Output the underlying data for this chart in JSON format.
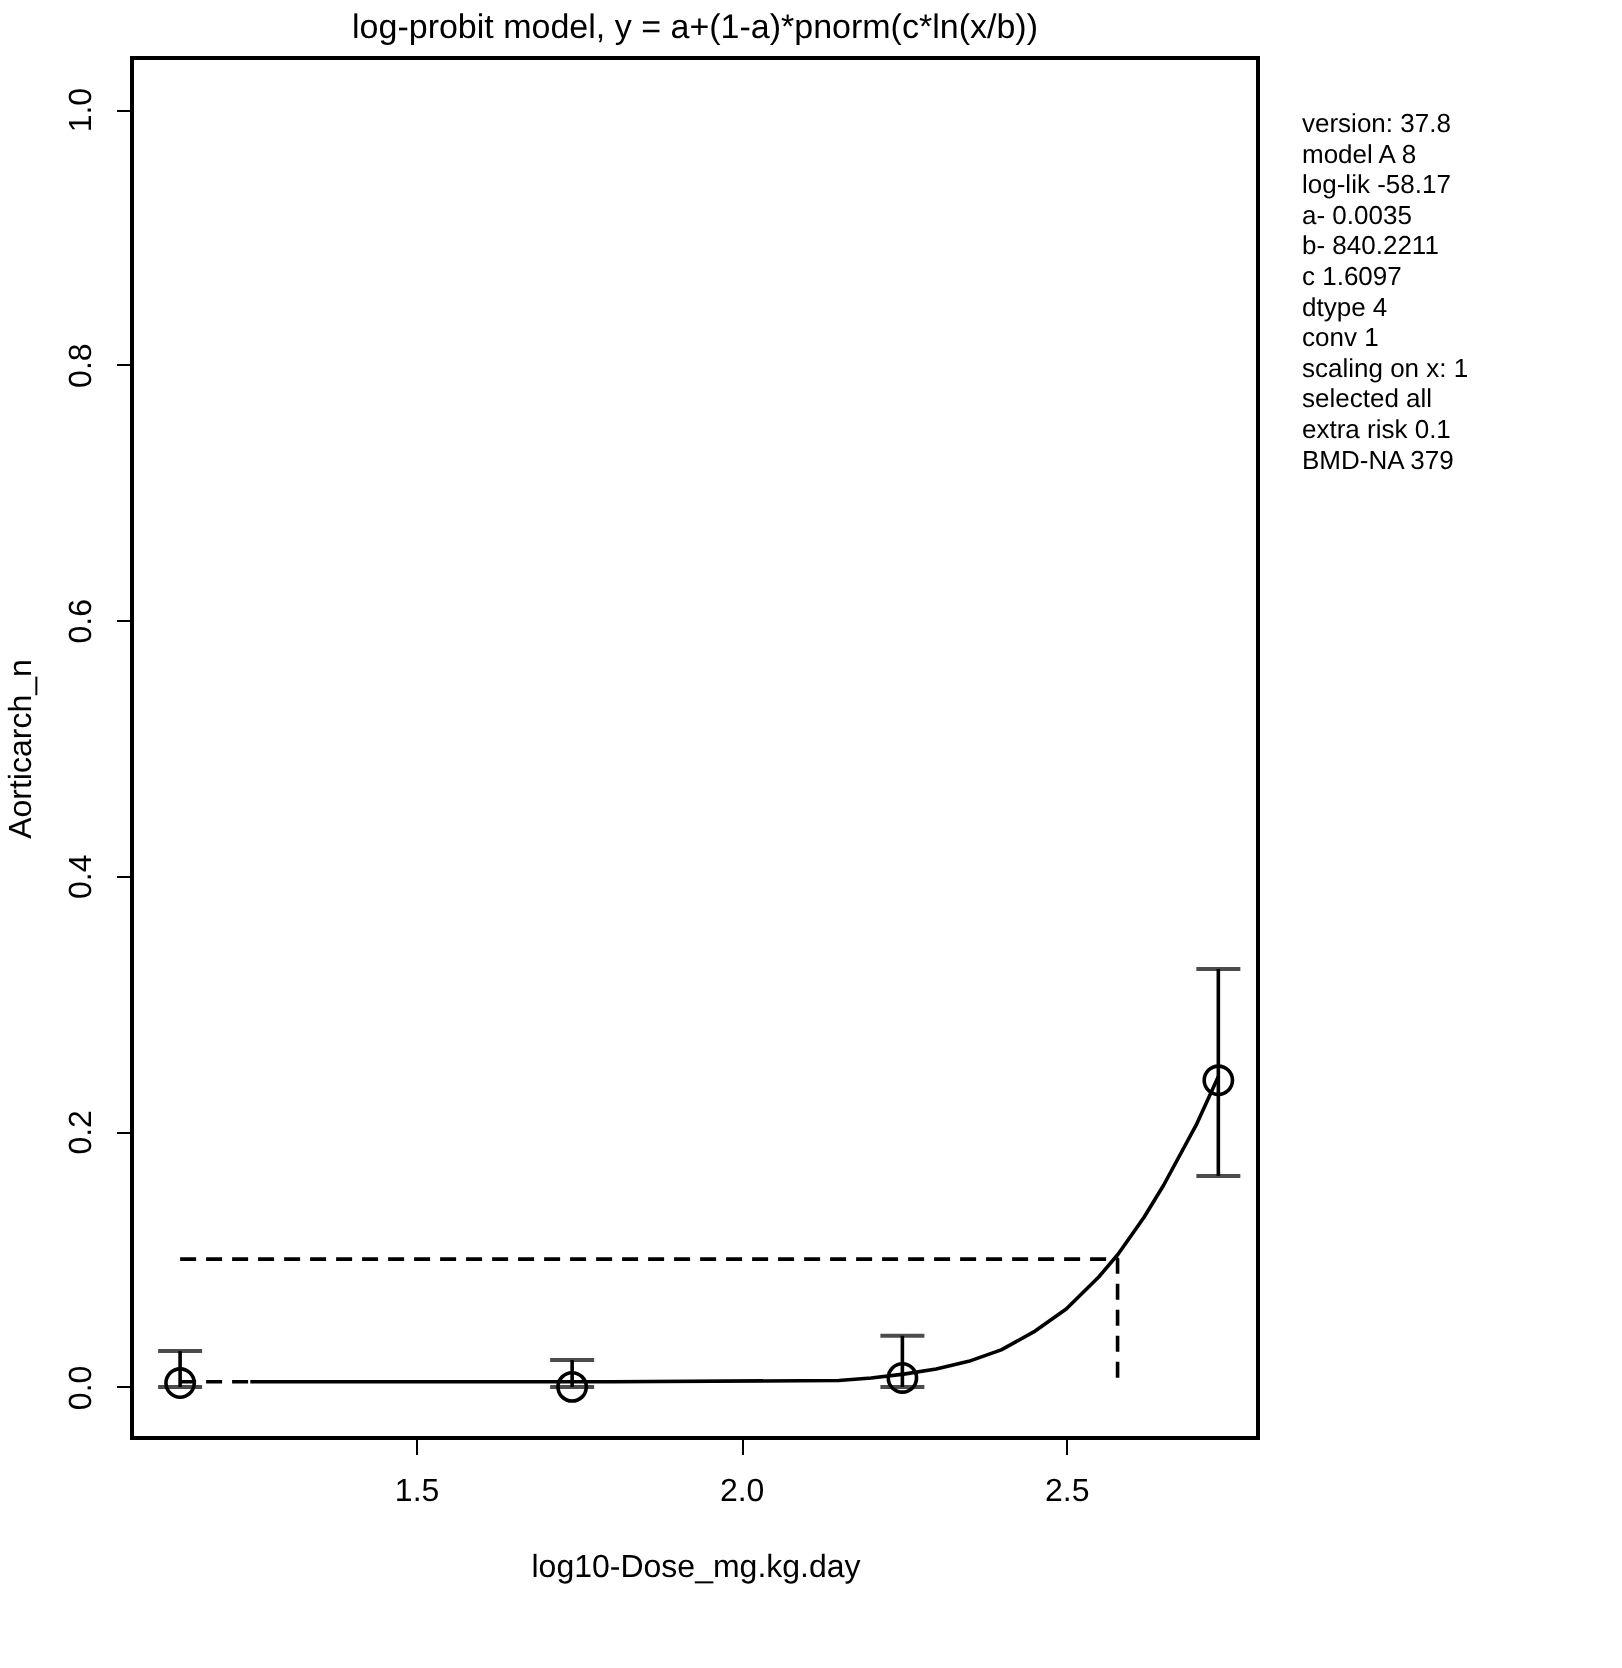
{
  "chart_data": {
    "type": "scatter",
    "title": "log-probit model, y = a+(1-a)*pnorm(c*ln(x/b))",
    "xlabel": "log10-Dose_mg.kg.day",
    "ylabel": "Aorticarch_n",
    "xlim": [
      1.063,
      2.795
    ],
    "ylim": [
      -0.04,
      1.04
    ],
    "xticks": [
      1.5,
      {
        "value": 2,
        "label": "2.0"
      },
      2.5
    ],
    "yticks": [
      {
        "value": 0,
        "label": "0.0"
      },
      0.2,
      0.4,
      0.6,
      0.8,
      {
        "value": 1,
        "label": "1.0"
      }
    ],
    "grid": false,
    "series": [
      {
        "type": "scatter",
        "color": "#000000",
        "marker": "circle",
        "x": [
          1.137,
          1.74,
          2.248,
          2.734
        ],
        "values": [
          0.003,
          0.0,
          0.007,
          0.24
        ],
        "errors": [
          [
            0.0,
            0.028
          ],
          [
            0.0,
            0.021
          ],
          [
            0.0,
            0.04
          ],
          [
            0.165,
            0.327
          ]
        ]
      },
      {
        "type": "line",
        "color": "#000000",
        "line_style": "solid",
        "marker": "none",
        "x": [
          1.245,
          1.8,
          2.15,
          2.2,
          2.25,
          2.3,
          2.35,
          2.4,
          2.45,
          2.5,
          2.55,
          2.58,
          2.62,
          2.65,
          2.7,
          2.734
        ],
        "values": [
          0.004,
          0.004,
          0.005,
          0.007,
          0.01,
          0.014,
          0.02,
          0.029,
          0.043,
          0.061,
          0.086,
          0.104,
          0.133,
          0.158,
          0.205,
          0.243
        ]
      },
      {
        "type": "line",
        "color": "#000000",
        "line_style": "dashed",
        "marker": "none",
        "x": [
          1.137,
          1.245
        ],
        "values": [
          0.004,
          0.004
        ]
      },
      {
        "type": "line",
        "color": "#000000",
        "line_style": "dashed",
        "marker": "none",
        "x": [
          1.137,
          2.579,
          2.579
        ],
        "values": [
          0.1,
          0.1,
          0.0
        ]
      }
    ],
    "annotations": [
      "version: 37.8",
      "model   A 8",
      "log-lik   -58.17",
      "a-   0.0035",
      "b-   840.2211",
      "c   1.6097",
      "dtype   4",
      "conv   1",
      "scaling on x: 1",
      "selected   all",
      "extra risk   0.1",
      "BMD-NA  379"
    ]
  }
}
